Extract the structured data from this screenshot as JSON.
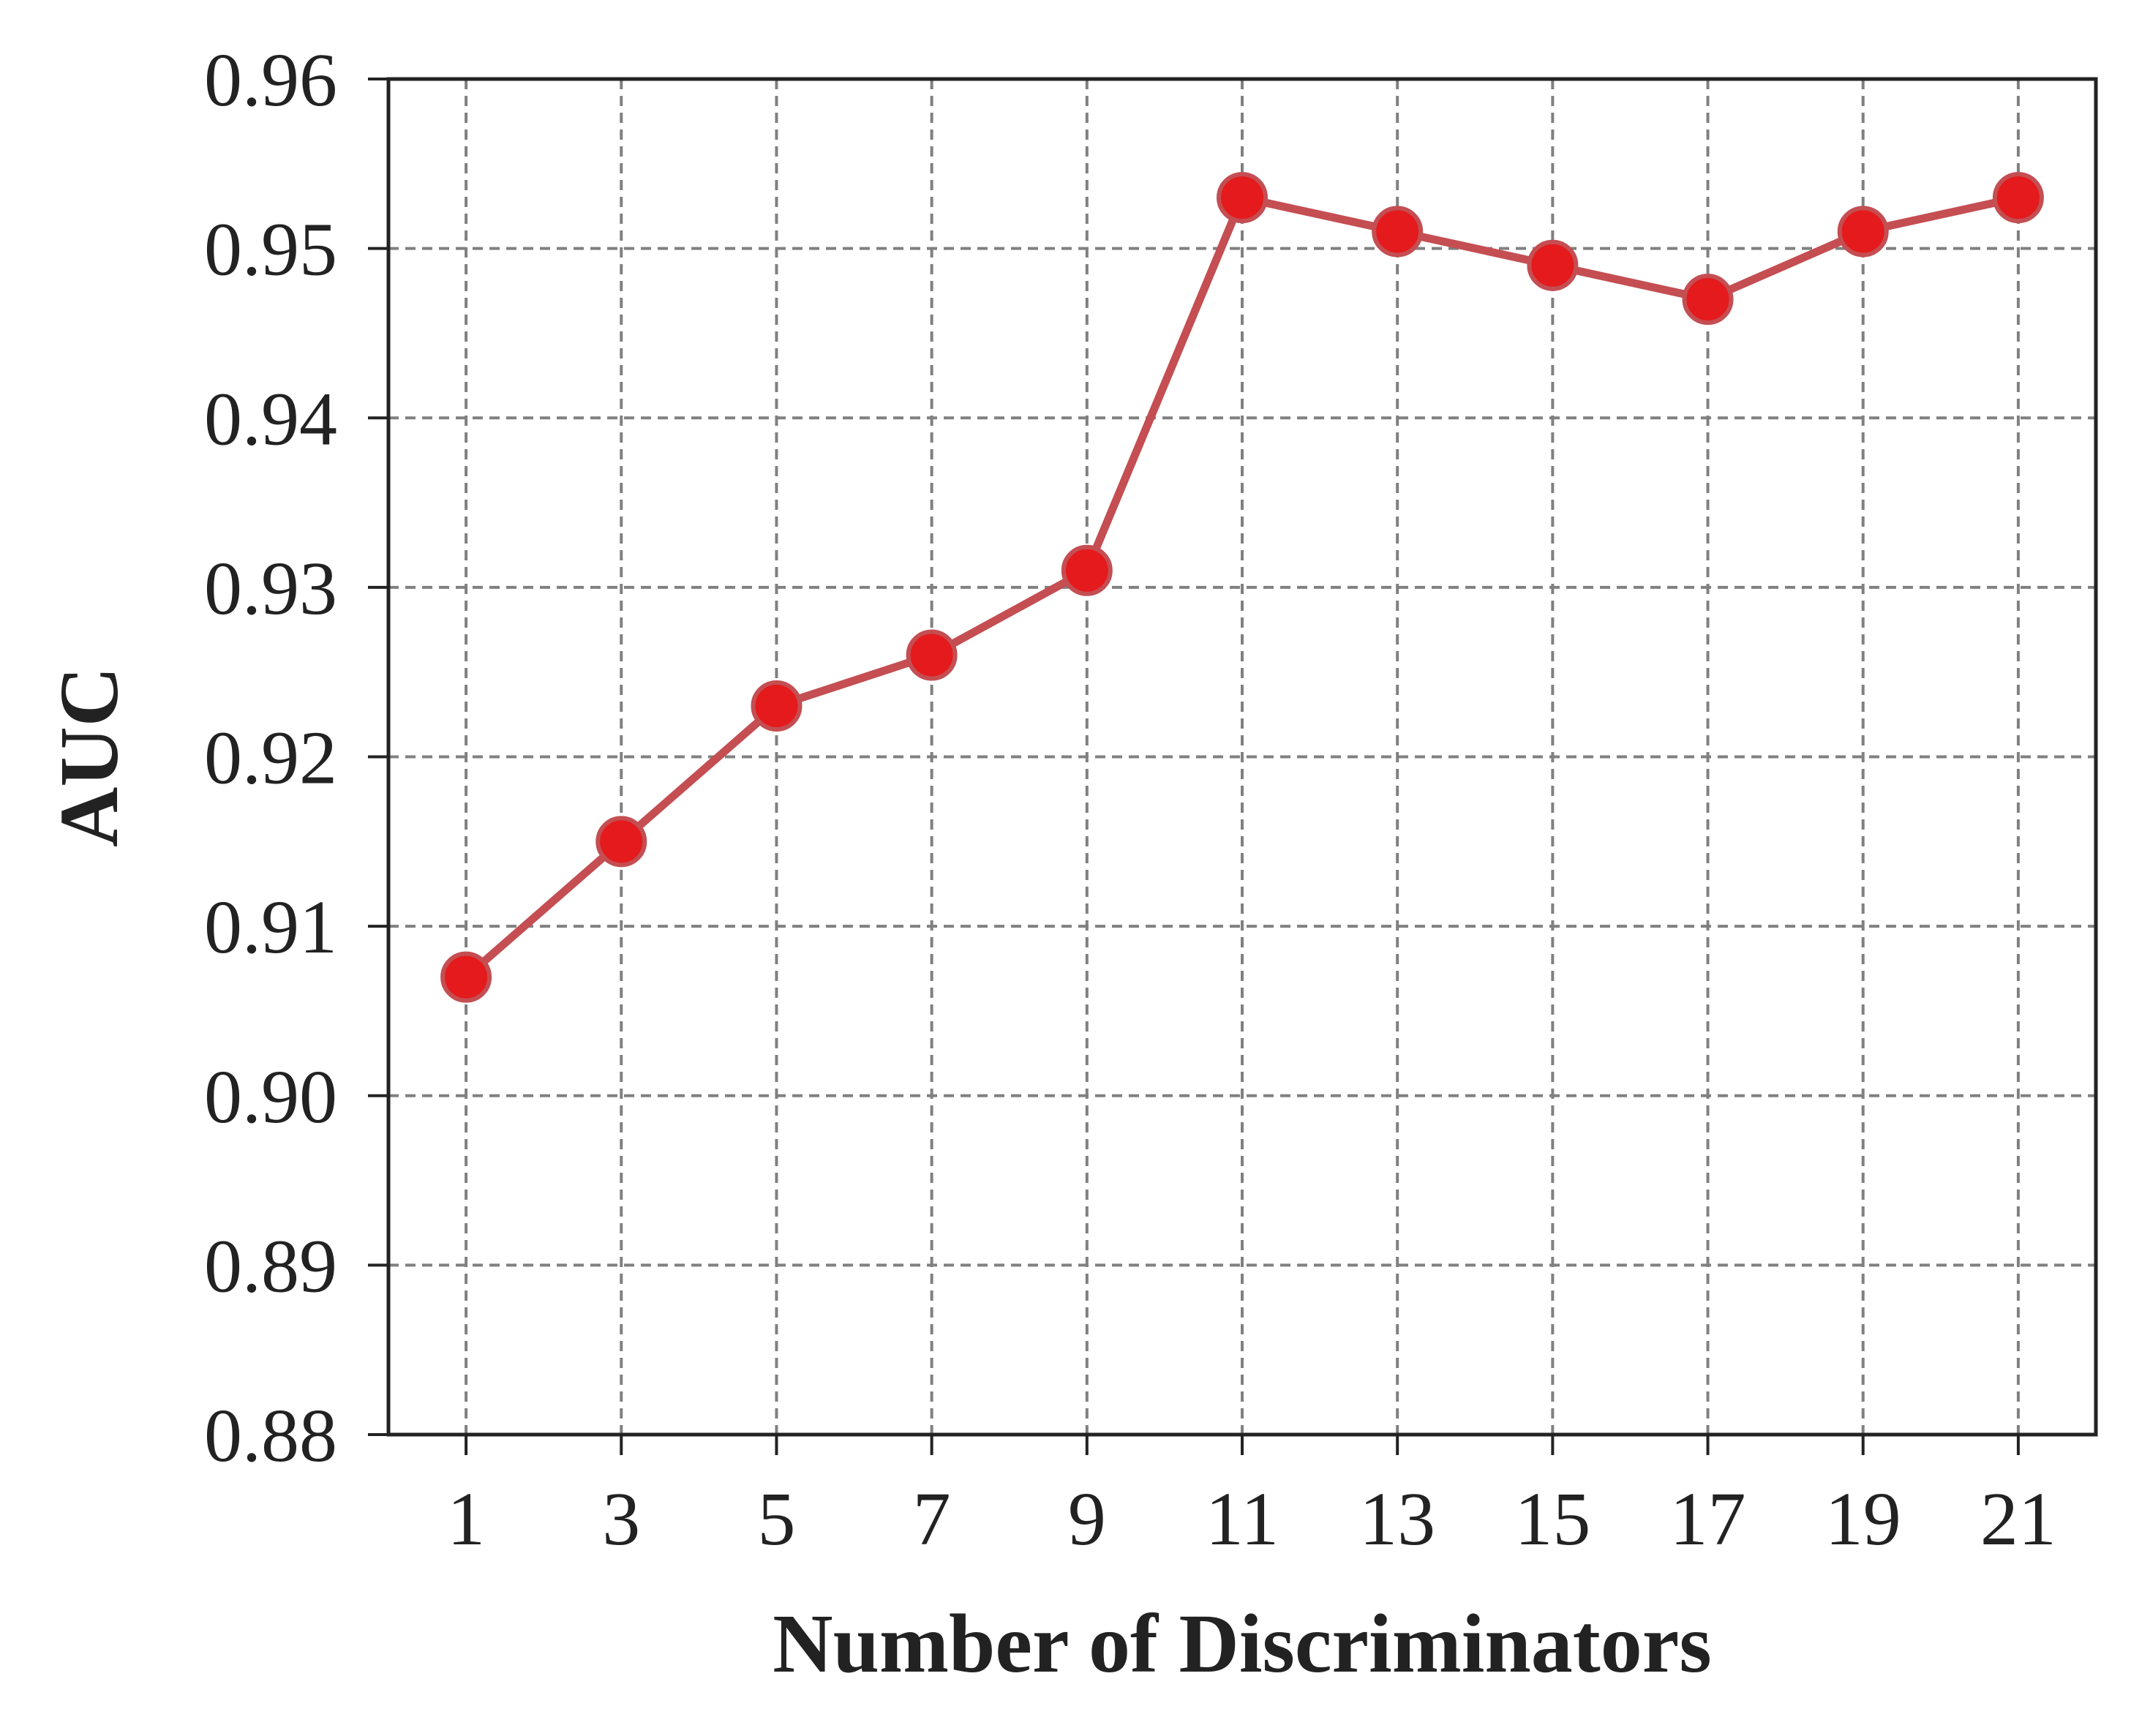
{
  "chart_data": {
    "type": "line",
    "title": "",
    "xlabel": "Number of Discriminators",
    "ylabel": "AUC",
    "x_ticks": [
      "1",
      "3",
      "5",
      "7",
      "9",
      "11",
      "13",
      "15",
      "17",
      "19",
      "21"
    ],
    "y_ticks": [
      "0.88",
      "0.89",
      "0.90",
      "0.91",
      "0.92",
      "0.93",
      "0.94",
      "0.95",
      "0.96"
    ],
    "xlim": [
      0,
      22
    ],
    "ylim": [
      0.88,
      0.96
    ],
    "grid": true,
    "grid_style": "dashed",
    "legend": "none",
    "series": [
      {
        "x": [
          1,
          3,
          5,
          7,
          9,
          11,
          13,
          15,
          17,
          19,
          21
        ],
        "values": [
          0.907,
          0.915,
          0.923,
          0.926,
          0.931,
          0.953,
          0.951,
          0.949,
          0.947,
          0.951,
          0.953
        ]
      }
    ],
    "colors": {
      "line": "#c44e52",
      "marker_fill": "#e41a1c",
      "marker_edge": "#c44e52",
      "grid": "#808080",
      "axis": "#222222"
    }
  }
}
